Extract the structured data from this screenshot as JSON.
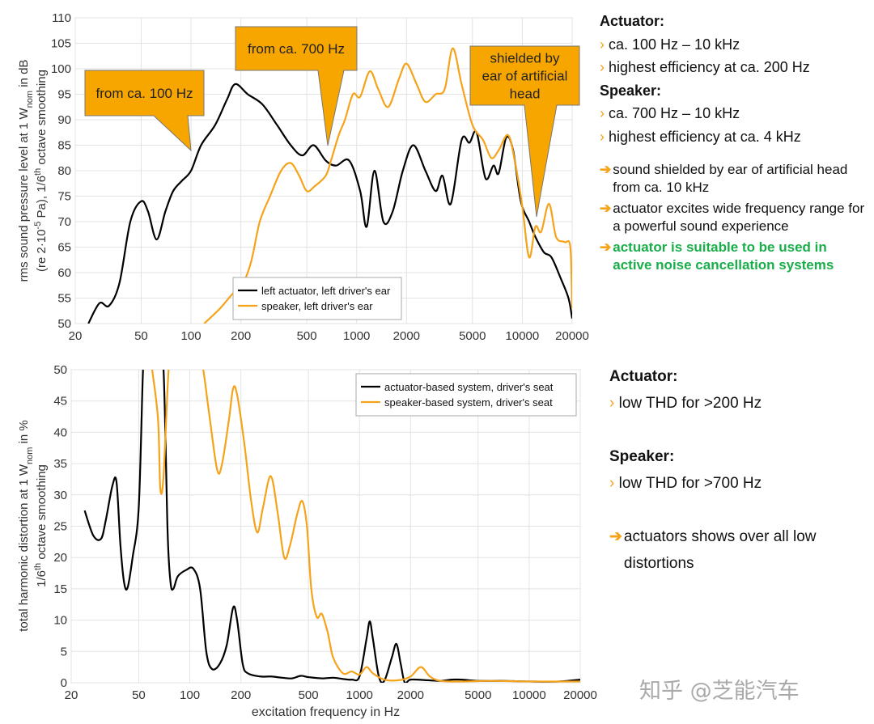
{
  "chart_data": [
    {
      "type": "line",
      "xscale": "log",
      "xlim": [
        20,
        20000
      ],
      "xticks": [
        20,
        50,
        100,
        200,
        500,
        1000,
        2000,
        5000,
        10000,
        20000
      ],
      "ylim": [
        50,
        110
      ],
      "yticks": [
        50,
        55,
        60,
        65,
        70,
        75,
        80,
        85,
        90,
        95,
        100,
        105,
        110
      ],
      "grid": true,
      "legend": "lower center",
      "ylabel": [
        [
          "rms sound pressure level at 1 W",
          "nom",
          " in dB"
        ],
        [
          "(re 2·10",
          "-5",
          " Pa), 1/6",
          "th",
          " octave smoothing"
        ]
      ],
      "annotations": [
        [
          "from ca. 100 Hz"
        ],
        [
          "from ca. 700 Hz"
        ],
        [
          "shielded by",
          "ear of artificial",
          "head"
        ]
      ],
      "annotation_color": "#f7a600",
      "series": [
        {
          "name": "left actuator, left driver's ear",
          "color": "#000000",
          "x": [
            24,
            28,
            32,
            37,
            43,
            50,
            55,
            62,
            70,
            78,
            88,
            100,
            115,
            140,
            165,
            185,
            220,
            270,
            330,
            400,
            470,
            550,
            650,
            750,
            900,
            1050,
            1150,
            1280,
            1450,
            1650,
            1900,
            2200,
            2600,
            3000,
            3300,
            3700,
            4300,
            4800,
            5300,
            6000,
            6700,
            7200,
            8000,
            8800,
            9800,
            11000,
            12000,
            13500,
            15000,
            17000,
            19000,
            20000
          ],
          "values": [
            50,
            54,
            53.5,
            58,
            70,
            74,
            72,
            66.5,
            72,
            76,
            78,
            80,
            85,
            89,
            94,
            97,
            95,
            93,
            89,
            85,
            83,
            85,
            82,
            81,
            82,
            76,
            69,
            80,
            70,
            72,
            80,
            85,
            80,
            76,
            79,
            73.5,
            86,
            85.5,
            87.5,
            78.5,
            81,
            79.5,
            86.5,
            84,
            74,
            70,
            67,
            64,
            63,
            59,
            55,
            51
          ]
        },
        {
          "name": "speaker, left driver's ear",
          "color": "#f5a31a",
          "x": [
            120,
            150,
            180,
            200,
            230,
            260,
            300,
            350,
            400,
            450,
            500,
            560,
            650,
            700,
            780,
            850,
            950,
            1050,
            1200,
            1350,
            1550,
            1800,
            2000,
            2300,
            2600,
            3000,
            3400,
            3800,
            4300,
            5000,
            5800,
            6500,
            7200,
            8200,
            9000,
            10000,
            11000,
            12000,
            13000,
            14500,
            16000,
            18000,
            19500,
            20000
          ],
          "values": [
            50,
            53,
            56,
            57,
            62,
            70,
            75,
            80,
            81.5,
            79,
            76,
            77,
            79,
            82,
            87,
            90,
            95,
            94.5,
            99.5,
            96,
            92.5,
            98,
            101,
            97,
            93.5,
            95,
            96,
            104,
            97,
            89,
            86,
            82.5,
            84,
            87,
            82,
            73,
            63,
            69,
            68,
            73.5,
            67,
            66,
            65,
            53
          ]
        }
      ]
    },
    {
      "type": "line",
      "xscale": "log",
      "xlim": [
        20,
        20000
      ],
      "xticks": [
        20,
        50,
        100,
        200,
        500,
        1000,
        2000,
        5000,
        10000,
        20000
      ],
      "ylim": [
        0,
        50
      ],
      "yticks": [
        0,
        5,
        10,
        15,
        20,
        25,
        30,
        35,
        40,
        45,
        50
      ],
      "grid": true,
      "legend": "upper right",
      "xlabel": "excitation frequency in Hz",
      "ylabel": [
        [
          "total harmonic distortion at 1 W",
          "nom",
          " in %"
        ],
        [
          "1/6",
          "th",
          " octave smoothing"
        ]
      ],
      "series": [
        {
          "name": "actuator-based system, driver's seat",
          "color": "#000000",
          "x": [
            24,
            27,
            30,
            32,
            35,
            37,
            39,
            41,
            43,
            46,
            50,
            53,
            55,
            65,
            70,
            74,
            77,
            80,
            85,
            95,
            105,
            115,
            125,
            135,
            150,
            165,
            180,
            190,
            205,
            220,
            260,
            300,
            350,
            400,
            450,
            500,
            600,
            700,
            800,
            900,
            1000,
            1100,
            1150,
            1200,
            1300,
            1400,
            1550,
            1650,
            1750,
            1850,
            2000,
            2500,
            3000,
            3500,
            4000,
            5000,
            7000,
            10000,
            15000,
            20000
          ],
          "values": [
            27.5,
            23.5,
            23,
            26,
            31.5,
            32,
            22,
            16,
            15.2,
            20,
            28,
            50,
            55,
            55,
            50,
            24,
            16,
            15,
            17,
            18,
            18.2,
            15,
            5,
            2.2,
            3,
            6,
            12,
            10,
            3,
            1.5,
            1,
            1,
            0.8,
            0.7,
            1.1,
            0.9,
            0.7,
            0.8,
            0.6,
            0.5,
            1,
            7,
            9.8,
            7,
            1,
            0.3,
            4,
            6.2,
            3,
            0,
            0.5,
            0.4,
            0.3,
            0.5,
            0.5,
            0.3,
            0.3,
            0.2,
            0.2,
            0.5
          ]
        },
        {
          "name": "speaker-based system, driver's seat",
          "color": "#f5a31a",
          "x": [
            60,
            65,
            67,
            70,
            75,
            80,
            110,
            120,
            130,
            145,
            155,
            170,
            180,
            190,
            210,
            230,
            250,
            270,
            300,
            330,
            360,
            390,
            430,
            460,
            490,
            520,
            560,
            600,
            650,
            700,
            800,
            900,
            1000,
            1100,
            1200,
            1400,
            1700,
            2000,
            2300,
            2600,
            3000,
            4000,
            6000,
            10000,
            20000
          ],
          "values": [
            50,
            42,
            31,
            33,
            50,
            55,
            55,
            50,
            43,
            34,
            35,
            42,
            47,
            46,
            38,
            29,
            24,
            28,
            33,
            27,
            20,
            22,
            27,
            29,
            25,
            15,
            10.5,
            11,
            8,
            4,
            1.5,
            1.8,
            1.3,
            2.5,
            1.5,
            0.5,
            0.4,
            1,
            2.5,
            1,
            0.3,
            0.2,
            0.3,
            0.2,
            0.2
          ]
        }
      ]
    }
  ],
  "notes_top": {
    "groups": [
      {
        "heading": "Actuator:",
        "items": [
          "ca. 100 Hz – 10 kHz",
          "highest efficiency at ca. 200 Hz"
        ]
      },
      {
        "heading": "Speaker:",
        "items": [
          "ca. 700 Hz – 10 kHz",
          "highest efficiency at ca. 4 kHz"
        ]
      }
    ],
    "conclusions": [
      "sound shielded by ear of artificial head from ca. 10 kHz",
      "actuator excites wide frequency range for a powerful sound experience"
    ],
    "highlight": "actuator is suitable to be used in active noise cancellation systems"
  },
  "notes_bottom": {
    "groups": [
      {
        "heading": "Actuator:",
        "items": [
          "low THD for >200 Hz"
        ]
      },
      {
        "heading": "Speaker:",
        "items": [
          "low THD for >700 Hz"
        ]
      }
    ],
    "conclusions": [
      "actuators shows over all low distortions"
    ]
  },
  "watermark": "知乎 @芝能汽车"
}
